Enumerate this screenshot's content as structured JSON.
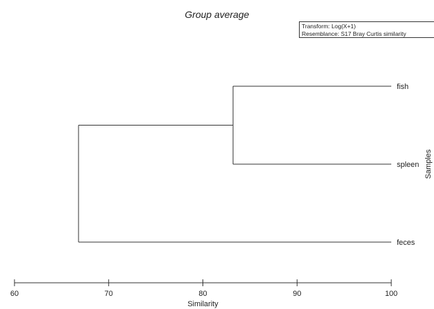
{
  "chart_data": {
    "type": "dendrogram",
    "title": "Group average",
    "info": {
      "transform": "Transform: Log(X+1)",
      "resemblance": "Resemblance: S17 Bray Curtis similarity"
    },
    "xlabel": "Similarity",
    "ylabel": "Samples",
    "xlim": [
      60,
      100
    ],
    "xticks": [
      60,
      70,
      80,
      90,
      100
    ],
    "leaves": [
      "fish",
      "spleen",
      "feces"
    ],
    "merges": [
      {
        "members": [
          "fish",
          "spleen"
        ],
        "similarity": 83.2
      },
      {
        "members": [
          "fish",
          "spleen",
          "feces"
        ],
        "similarity": 66.8
      }
    ],
    "grid": false
  }
}
